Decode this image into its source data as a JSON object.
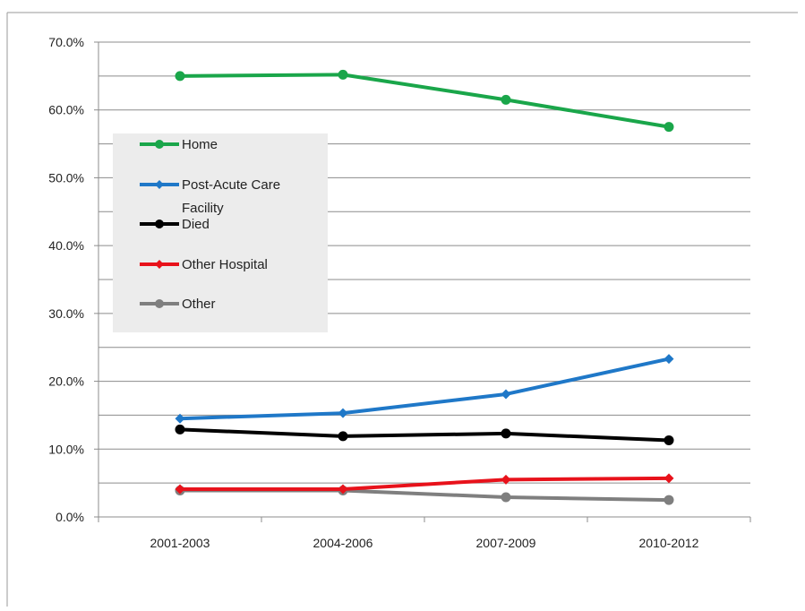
{
  "chart_data": {
    "type": "line",
    "title": "",
    "xlabel": "",
    "ylabel": "",
    "categories": [
      "2001-2003",
      "2004-2006",
      "2007-2009",
      "2010-2012"
    ],
    "y_ticks": [
      "0.0%",
      "10.0%",
      "20.0%",
      "30.0%",
      "40.0%",
      "50.0%",
      "60.0%",
      "70.0%"
    ],
    "ylim": [
      0,
      70
    ],
    "grid": "horizontal",
    "legend_placement": "upper-left",
    "series": [
      {
        "name": "Home",
        "values": [
          65.0,
          65.2,
          61.5,
          57.5
        ],
        "color": "#1aa64a",
        "marker": "circle"
      },
      {
        "name": "Post-Acute Care Facility",
        "values": [
          14.5,
          15.3,
          18.1,
          23.3
        ],
        "color": "#1f78c8",
        "marker": "diamond"
      },
      {
        "name": "Died",
        "values": [
          12.9,
          11.9,
          12.3,
          11.3
        ],
        "color": "#000000",
        "marker": "circle"
      },
      {
        "name": "Other Hospital",
        "values": [
          4.1,
          4.1,
          5.5,
          5.7
        ],
        "color": "#e8121b",
        "marker": "diamond"
      },
      {
        "name": "Other",
        "values": [
          3.9,
          3.9,
          2.9,
          2.5
        ],
        "color": "#7f7f7f",
        "marker": "circle"
      }
    ]
  }
}
